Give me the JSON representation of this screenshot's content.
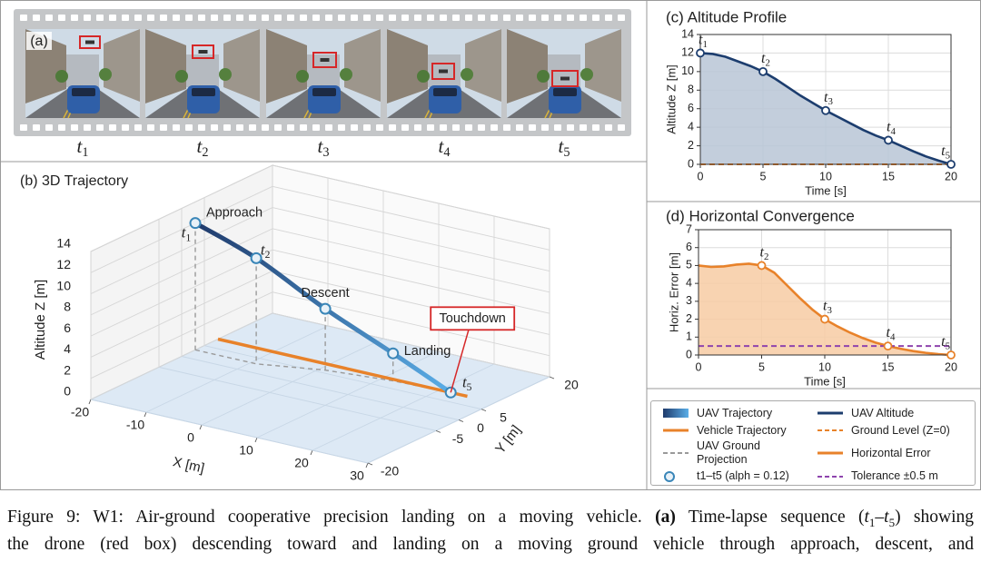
{
  "panel_a": {
    "label": "(a)",
    "frames": [
      {
        "var": "t",
        "sub": "1"
      },
      {
        "var": "t",
        "sub": "2"
      },
      {
        "var": "t",
        "sub": "3"
      },
      {
        "var": "t",
        "sub": "4"
      },
      {
        "var": "t",
        "sub": "5"
      }
    ]
  },
  "chart_data": [
    {
      "type": "trajectory3d",
      "title": "(b) 3D Trajectory",
      "xlabel": "X [m]",
      "ylabel": "Y [m]",
      "zlabel": "Altitude Z [m]",
      "xlim": [
        -20,
        30
      ],
      "ylim": [
        -20,
        20
      ],
      "zlim": [
        0,
        14
      ],
      "xticks": [
        -20,
        -10,
        0,
        10,
        20,
        30
      ],
      "yticks": [
        -20,
        -5,
        0,
        5,
        20
      ],
      "zticks": [
        0,
        2,
        4,
        6,
        8,
        10,
        12,
        14
      ],
      "series": [
        {
          "name": "UAV Trajectory",
          "color": "#1f3a6b",
          "color_end": "#5aaee8",
          "x": [
            -20,
            -9,
            1,
            12,
            22
          ],
          "y": [
            3,
            3,
            6,
            7.5,
            8
          ],
          "z": [
            12,
            10,
            5.8,
            2.6,
            0
          ]
        },
        {
          "name": "Vehicle Trajectory",
          "color": "#e8822a",
          "x": [
            -20,
            25
          ],
          "y": [
            8,
            8
          ],
          "z": [
            0,
            0
          ]
        },
        {
          "name": "UAV Ground Projection",
          "color": "#9a9a9a",
          "dashed": true
        }
      ],
      "markers": {
        "name": "t1–t5 (alph = 0.12)",
        "color": "#3a86b8",
        "labels": [
          {
            "var": "t",
            "sub": "1"
          },
          {
            "var": "t",
            "sub": "2"
          },
          null,
          null,
          {
            "var": "t",
            "sub": "5"
          }
        ]
      },
      "annotations": [
        {
          "text": "Approach",
          "point": 0
        },
        {
          "text": "Descent",
          "point": 2
        },
        {
          "text": "Landing",
          "point": 3
        },
        {
          "text": "Touchdown",
          "point": 4,
          "boxed": true,
          "color": "#d62728"
        }
      ]
    },
    {
      "type": "line",
      "title": "(c) Altitude Profile",
      "xlabel": "Time [s]",
      "ylabel": "Altitude Z [m]",
      "xlim": [
        0,
        20
      ],
      "ylim": [
        0,
        14
      ],
      "xticks": [
        0,
        5,
        10,
        15,
        20
      ],
      "yticks": [
        0,
        2,
        4,
        6,
        8,
        10,
        12,
        14
      ],
      "grid": true,
      "series": [
        {
          "name": "UAV Altitude",
          "color": "#1c3d6e",
          "fill": "#b8c5d6",
          "x": [
            0,
            1,
            2,
            3,
            4,
            5,
            6,
            7,
            8,
            9,
            10,
            11,
            12,
            13,
            14,
            15,
            16,
            17,
            18,
            19,
            20
          ],
          "values": [
            12,
            11.9,
            11.6,
            11.1,
            10.6,
            10,
            9.2,
            8.3,
            7.4,
            6.6,
            5.8,
            5.1,
            4.4,
            3.7,
            3.1,
            2.6,
            2.0,
            1.4,
            0.85,
            0.4,
            0
          ]
        },
        {
          "name": "Ground Level (Z=0)",
          "color": "#e8822a",
          "dashed": true,
          "x": [
            0,
            20
          ],
          "values": [
            0,
            0
          ]
        }
      ],
      "markers": {
        "color": "#1c3d6e",
        "x": [
          0,
          5,
          10,
          15,
          20
        ],
        "values": [
          12,
          10,
          5.8,
          2.6,
          0
        ],
        "labels": [
          {
            "var": "t",
            "sub": "1"
          },
          {
            "var": "t",
            "sub": "2"
          },
          {
            "var": "t",
            "sub": "3"
          },
          {
            "var": "t",
            "sub": "4"
          },
          {
            "var": "t",
            "sub": "5"
          }
        ]
      }
    },
    {
      "type": "line",
      "title": "(d) Horizontal Convergence",
      "xlabel": "Time [s]",
      "ylabel": "Horiz. Error [m]",
      "xlim": [
        0,
        20
      ],
      "ylim": [
        0,
        7
      ],
      "xticks": [
        0,
        5,
        10,
        15,
        20
      ],
      "yticks": [
        0,
        1,
        2,
        3,
        4,
        5,
        6,
        7
      ],
      "grid": true,
      "series": [
        {
          "name": "Horizontal Error",
          "color": "#e8822a",
          "fill": "#f7cba3",
          "x": [
            0,
            1,
            2,
            3,
            4,
            5,
            6,
            7,
            8,
            9,
            10,
            11,
            12,
            13,
            14,
            15,
            16,
            17,
            18,
            19,
            20
          ],
          "values": [
            5,
            4.92,
            4.95,
            5.05,
            5.1,
            5,
            4.6,
            3.9,
            3.2,
            2.55,
            2.0,
            1.6,
            1.25,
            0.95,
            0.7,
            0.5,
            0.35,
            0.22,
            0.12,
            0.05,
            0
          ]
        },
        {
          "name": "Tolerance ±0.5 m",
          "color": "#8e44ad",
          "dashed": true,
          "x": [
            0,
            20
          ],
          "values": [
            0.5,
            0.5
          ]
        }
      ],
      "markers": {
        "color": "#e8822a",
        "x": [
          5,
          10,
          15,
          20
        ],
        "values": [
          5,
          2,
          0.5,
          0
        ],
        "labels": [
          {
            "var": "t",
            "sub": "2"
          },
          {
            "var": "t",
            "sub": "3"
          },
          {
            "var": "t",
            "sub": "4"
          },
          {
            "var": "t",
            "sub": "5"
          }
        ]
      }
    }
  ],
  "caption": {
    "lines": [
      [
        "Figure 9: W1: Air-ground cooperative precision landing on a moving vehicle.",
        "(a)",
        "Time-lapse sequence (",
        "t",
        "1",
        "–",
        "t",
        "5",
        ") showing"
      ],
      [
        "the drone (red box) descending toward and landing on a moving ground vehicle through approach, descent, and"
      ]
    ]
  }
}
